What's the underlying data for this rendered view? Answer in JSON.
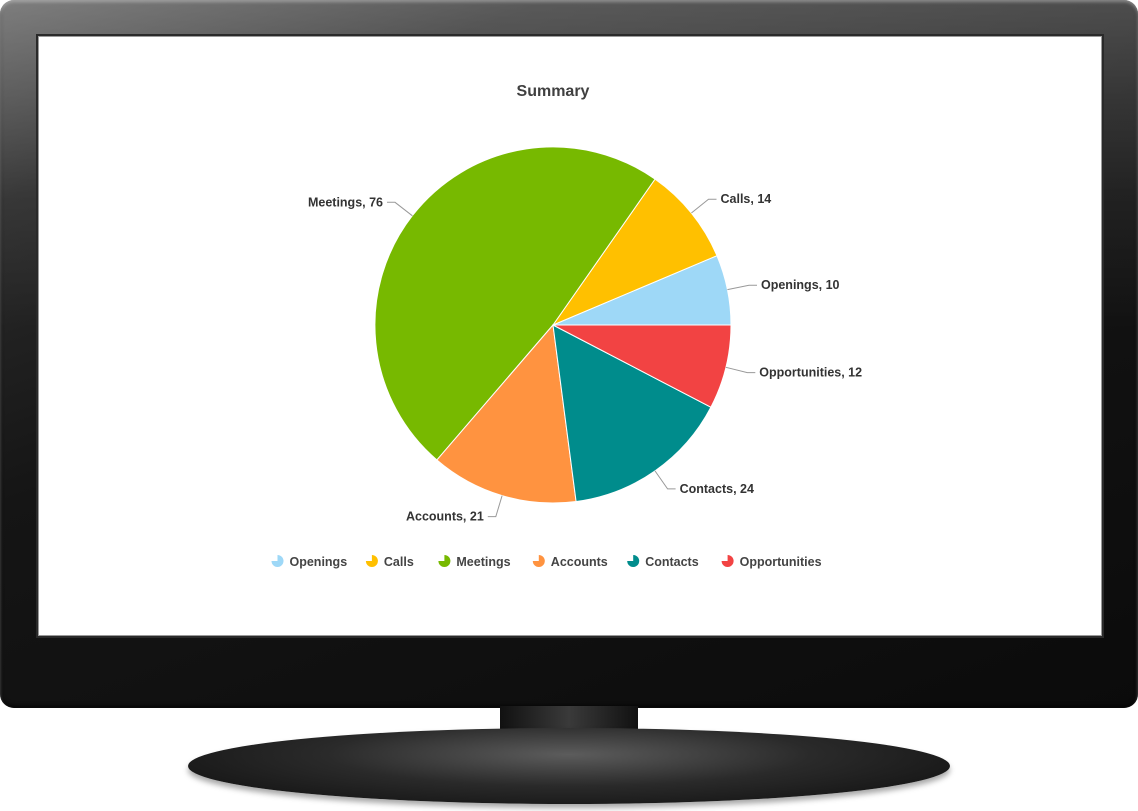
{
  "colors": {
    "openings": "#9ed8f7",
    "calls": "#ffc000",
    "meetings": "#77b900",
    "accounts": "#ff9340",
    "contacts": "#008c8c",
    "opportunities": "#f24343"
  },
  "chart_data": {
    "type": "pie",
    "title": "Summary",
    "legend": "bottom",
    "slices": [
      {
        "label": "Openings",
        "value": 10,
        "text": "Openings, 10",
        "color": "#9ed8f7"
      },
      {
        "label": "Calls",
        "value": 14,
        "text": "Calls, 14",
        "color": "#ffc000"
      },
      {
        "label": "Meetings",
        "value": 76,
        "text": "Meetings, 76",
        "color": "#77b900"
      },
      {
        "label": "Accounts",
        "value": 21,
        "text": "Accounts, 21",
        "color": "#ff9340"
      },
      {
        "label": "Contacts",
        "value": 24,
        "text": "Contacts, 24",
        "color": "#008c8c"
      },
      {
        "label": "Opportunities",
        "value": 12,
        "text": "Opportunities, 12",
        "color": "#f24343"
      }
    ]
  }
}
